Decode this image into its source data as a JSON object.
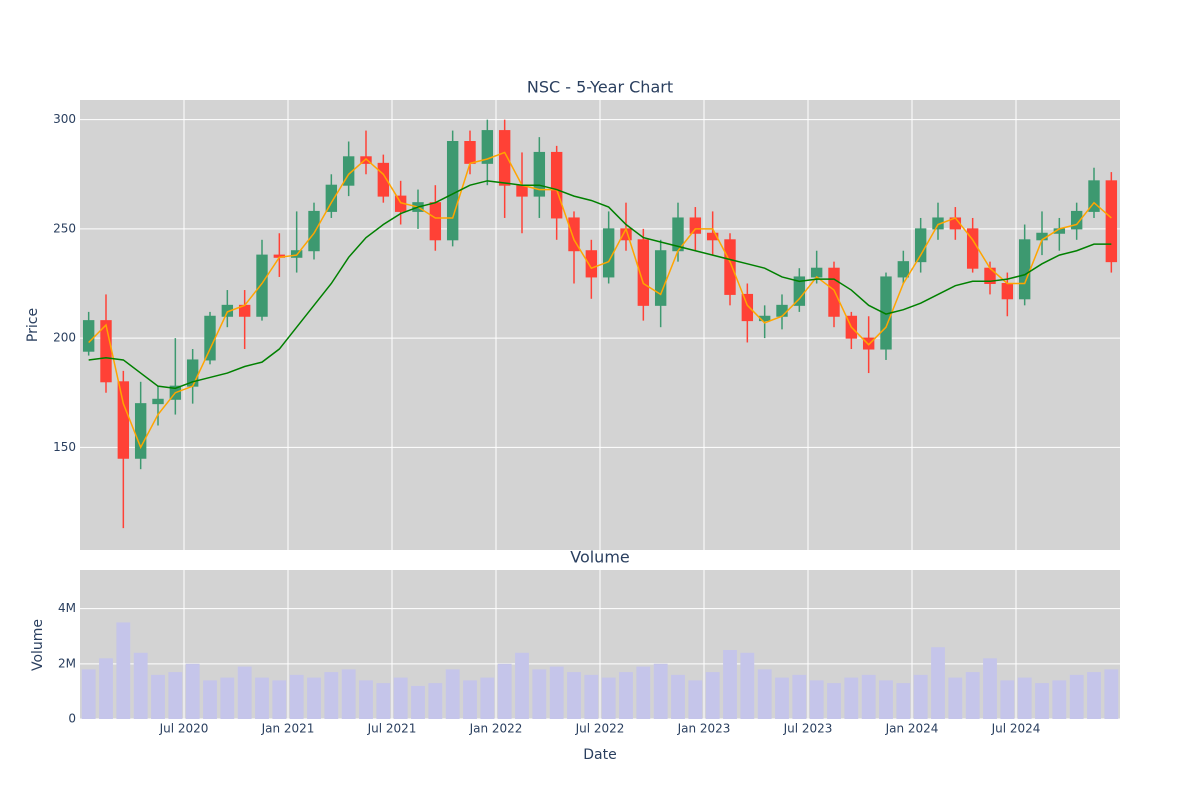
{
  "chart_data": [
    {
      "type": "candlestick",
      "title": "NSC - 5-Year Chart",
      "y_label": "Price",
      "x": [
        "2020-01",
        "2020-02",
        "2020-03",
        "2020-04",
        "2020-05",
        "2020-06",
        "2020-07",
        "2020-08",
        "2020-09",
        "2020-10",
        "2020-11",
        "2020-12",
        "2021-01",
        "2021-02",
        "2021-03",
        "2021-04",
        "2021-05",
        "2021-06",
        "2021-07",
        "2021-08",
        "2021-09",
        "2021-10",
        "2021-11",
        "2021-12",
        "2022-01",
        "2022-02",
        "2022-03",
        "2022-04",
        "2022-05",
        "2022-06",
        "2022-07",
        "2022-08",
        "2022-09",
        "2022-10",
        "2022-11",
        "2022-12",
        "2023-01",
        "2023-02",
        "2023-03",
        "2023-04",
        "2023-05",
        "2023-06",
        "2023-07",
        "2023-08",
        "2023-09",
        "2023-10",
        "2023-11",
        "2023-12",
        "2024-01",
        "2024-02",
        "2024-03",
        "2024-04",
        "2024-05",
        "2024-06",
        "2024-07",
        "2024-08",
        "2024-09",
        "2024-10",
        "2024-11",
        "2024-12"
      ],
      "open": [
        194,
        208,
        180,
        145,
        170,
        172,
        178,
        190,
        210,
        215,
        210,
        238,
        237,
        240,
        258,
        270,
        283,
        280,
        265,
        258,
        262,
        245,
        290,
        280,
        295,
        270,
        265,
        285,
        255,
        240,
        228,
        250,
        245,
        215,
        240,
        255,
        248,
        245,
        220,
        208,
        210,
        215,
        228,
        232,
        210,
        200,
        195,
        228,
        235,
        250,
        255,
        250,
        232,
        225,
        218,
        245,
        248,
        250,
        258,
        272
      ],
      "high": [
        212,
        220,
        185,
        180,
        178,
        200,
        195,
        212,
        222,
        222,
        245,
        248,
        258,
        262,
        275,
        290,
        295,
        284,
        272,
        268,
        270,
        295,
        295,
        300,
        300,
        285,
        292,
        288,
        258,
        245,
        258,
        262,
        250,
        245,
        262,
        260,
        258,
        248,
        225,
        215,
        220,
        232,
        240,
        235,
        212,
        210,
        230,
        240,
        255,
        262,
        260,
        255,
        235,
        230,
        252,
        258,
        255,
        262,
        278,
        276
      ],
      "low": [
        192,
        175,
        113,
        140,
        160,
        165,
        170,
        188,
        205,
        195,
        208,
        228,
        230,
        236,
        255,
        265,
        275,
        262,
        252,
        250,
        240,
        242,
        275,
        270,
        255,
        248,
        255,
        245,
        225,
        218,
        225,
        240,
        208,
        205,
        235,
        240,
        238,
        215,
        198,
        200,
        204,
        212,
        225,
        205,
        195,
        184,
        190,
        225,
        230,
        245,
        245,
        230,
        220,
        210,
        215,
        238,
        240,
        245,
        255,
        230
      ],
      "close": [
        208,
        180,
        145,
        170,
        172,
        178,
        190,
        210,
        215,
        210,
        238,
        237,
        240,
        258,
        270,
        283,
        280,
        265,
        258,
        262,
        245,
        290,
        280,
        295,
        270,
        265,
        285,
        255,
        240,
        228,
        250,
        245,
        215,
        240,
        255,
        248,
        245,
        220,
        208,
        210,
        215,
        228,
        232,
        210,
        200,
        195,
        228,
        235,
        250,
        255,
        250,
        232,
        225,
        218,
        245,
        248,
        250,
        258,
        272,
        235
      ],
      "increasing_color": "#3d9970",
      "decreasing_color": "#ff4136",
      "lines": [
        {
          "color": "#ffa500",
          "values": [
            198,
            206,
            170,
            150,
            165,
            175,
            178,
            195,
            212,
            215,
            225,
            237,
            238,
            248,
            262,
            275,
            282,
            275,
            262,
            260,
            255,
            255,
            280,
            282,
            285,
            270,
            268,
            268,
            245,
            232,
            235,
            250,
            225,
            220,
            240,
            250,
            250,
            235,
            215,
            207,
            210,
            218,
            228,
            222,
            205,
            197,
            205,
            225,
            238,
            252,
            255,
            245,
            232,
            225,
            225,
            245,
            250,
            252,
            262,
            255
          ]
        },
        {
          "color": "#008000",
          "values": [
            190,
            191,
            190,
            184,
            178,
            177,
            180,
            182,
            184,
            187,
            189,
            195,
            205,
            215,
            225,
            237,
            246,
            252,
            257,
            260,
            262,
            266,
            270,
            272,
            271,
            270,
            270,
            268,
            265,
            263,
            260,
            252,
            246,
            244,
            242,
            240,
            238,
            236,
            234,
            232,
            228,
            226,
            227,
            227,
            222,
            215,
            211,
            213,
            216,
            220,
            224,
            226,
            226,
            227,
            229,
            234,
            238,
            240,
            243,
            243
          ]
        }
      ],
      "xlim": [
        "2020-01",
        "2025-01"
      ],
      "ylim": [
        103,
        309
      ],
      "yticks": [
        150,
        200,
        250,
        300
      ],
      "background": "#d3d3d3",
      "grid": true
    },
    {
      "type": "bar",
      "title": "Volume",
      "x_label": "Date",
      "y_label": "Volume",
      "x": [
        "2020-01",
        "2020-02",
        "2020-03",
        "2020-04",
        "2020-05",
        "2020-06",
        "2020-07",
        "2020-08",
        "2020-09",
        "2020-10",
        "2020-11",
        "2020-12",
        "2021-01",
        "2021-02",
        "2021-03",
        "2021-04",
        "2021-05",
        "2021-06",
        "2021-07",
        "2021-08",
        "2021-09",
        "2021-10",
        "2021-11",
        "2021-12",
        "2022-01",
        "2022-02",
        "2022-03",
        "2022-04",
        "2022-05",
        "2022-06",
        "2022-07",
        "2022-08",
        "2022-09",
        "2022-10",
        "2022-11",
        "2022-12",
        "2023-01",
        "2023-02",
        "2023-03",
        "2023-04",
        "2023-05",
        "2023-06",
        "2023-07",
        "2023-08",
        "2023-09",
        "2023-10",
        "2023-11",
        "2023-12",
        "2024-01",
        "2024-02",
        "2024-03",
        "2024-04",
        "2024-05",
        "2024-06",
        "2024-07",
        "2024-08",
        "2024-09",
        "2024-10",
        "2024-11",
        "2024-12"
      ],
      "values": [
        1800000,
        2200000,
        3500000,
        2400000,
        1600000,
        1700000,
        2000000,
        1400000,
        1500000,
        1900000,
        1500000,
        1400000,
        1600000,
        1500000,
        1700000,
        1800000,
        1400000,
        1300000,
        1500000,
        1200000,
        1300000,
        1800000,
        1400000,
        1500000,
        2000000,
        2400000,
        1800000,
        1900000,
        1700000,
        1600000,
        1500000,
        1700000,
        1900000,
        2000000,
        1600000,
        1400000,
        1700000,
        2500000,
        2400000,
        1800000,
        1500000,
        1600000,
        1400000,
        1300000,
        1500000,
        1600000,
        1400000,
        1300000,
        1600000,
        2600000,
        1500000,
        1700000,
        2200000,
        1400000,
        1500000,
        1300000,
        1400000,
        1600000,
        1700000,
        1800000
      ],
      "color": "#c5c5ea",
      "xlim": [
        "2020-01",
        "2025-01"
      ],
      "xticks": [
        {
          "value": "2020-07",
          "label": "Jul 2020"
        },
        {
          "value": "2021-01",
          "label": "Jan 2021"
        },
        {
          "value": "2021-07",
          "label": "Jul 2021"
        },
        {
          "value": "2022-01",
          "label": "Jan 2022"
        },
        {
          "value": "2022-07",
          "label": "Jul 2022"
        },
        {
          "value": "2023-01",
          "label": "Jan 2023"
        },
        {
          "value": "2023-07",
          "label": "Jul 2023"
        },
        {
          "value": "2024-01",
          "label": "Jan 2024"
        },
        {
          "value": "2024-07",
          "label": "Jul 2024"
        }
      ],
      "ylim": [
        0,
        5400000
      ],
      "yticks": [
        0,
        {
          "value": 2000000,
          "label": "2M"
        },
        {
          "value": 4000000,
          "label": "4M"
        }
      ],
      "background": "#d3d3d3",
      "grid": true
    }
  ]
}
